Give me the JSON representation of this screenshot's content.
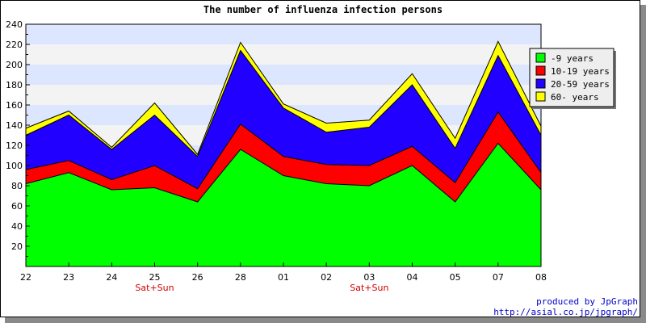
{
  "chart_data": {
    "type": "area",
    "stacked": true,
    "title": "The number of influenza infection persons",
    "categories": [
      "22",
      "23",
      "24",
      "25",
      "26",
      "28",
      "01",
      "02",
      "03",
      "04",
      "05",
      "07",
      "08"
    ],
    "sub_labels": [
      "",
      "",
      "",
      "Sat+Sun",
      "",
      "",
      "",
      "",
      "Sat+Sun",
      "",
      "",
      "",
      ""
    ],
    "ylim": [
      0,
      240
    ],
    "yticks": [
      20,
      40,
      60,
      80,
      100,
      120,
      140,
      160,
      180,
      200,
      220,
      240
    ],
    "grid": "horizontal-bands",
    "legend_position": "top-right",
    "series": [
      {
        "name": "-9 years",
        "color": "#00ff00",
        "values": [
          82,
          93,
          76,
          78,
          64,
          116,
          90,
          82,
          80,
          100,
          64,
          122,
          76
        ]
      },
      {
        "name": "10-19 years",
        "color": "#ff0000",
        "values": [
          14,
          12,
          10,
          22,
          13,
          25,
          19,
          19,
          20,
          19,
          19,
          31,
          17
        ]
      },
      {
        "name": "20-59 years",
        "color": "#2200ff",
        "values": [
          34,
          45,
          30,
          50,
          32,
          73,
          48,
          32,
          38,
          61,
          34,
          56,
          37
        ]
      },
      {
        "name": "60- years",
        "color": "#ffff00",
        "values": [
          7,
          4,
          2,
          12,
          2,
          8,
          4,
          9,
          7,
          11,
          10,
          14,
          9
        ]
      }
    ]
  },
  "credits": {
    "line1": "produced by JpGraph",
    "line2": "http://asial.co.jp/jpgraph/"
  }
}
